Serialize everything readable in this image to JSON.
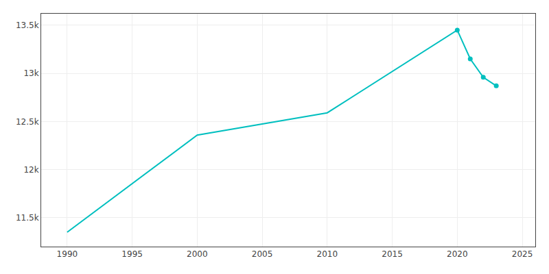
{
  "chart_data": {
    "type": "line",
    "x": [
      1990,
      2000,
      2010,
      2020,
      2021,
      2022,
      2023
    ],
    "series": [
      {
        "type": "line",
        "color": "#00BFBF",
        "line_style": "solid",
        "values": [
          11350,
          12359,
          12590,
          13450,
          13150,
          12960,
          12870
        ]
      },
      {
        "type": "scatter",
        "color": "#00BFBF",
        "marker": "circle",
        "x": [
          2020,
          2021,
          2022,
          2023
        ],
        "values": [
          13450,
          13150,
          12960,
          12870
        ]
      }
    ],
    "xlim": [
      1988,
      2026
    ],
    "xticks": [
      1990,
      1995,
      2000,
      2005,
      2010,
      2015,
      2020,
      2025
    ],
    "ylim": [
      11200,
      13620
    ],
    "yticks": [
      {
        "value": 11500,
        "label": "11.5k"
      },
      {
        "value": 12000,
        "label": "12k"
      },
      {
        "value": 12500,
        "label": "12.5k"
      },
      {
        "value": 13000,
        "label": "13k"
      },
      {
        "value": 13500,
        "label": "13.5k"
      }
    ],
    "grid": true
  }
}
